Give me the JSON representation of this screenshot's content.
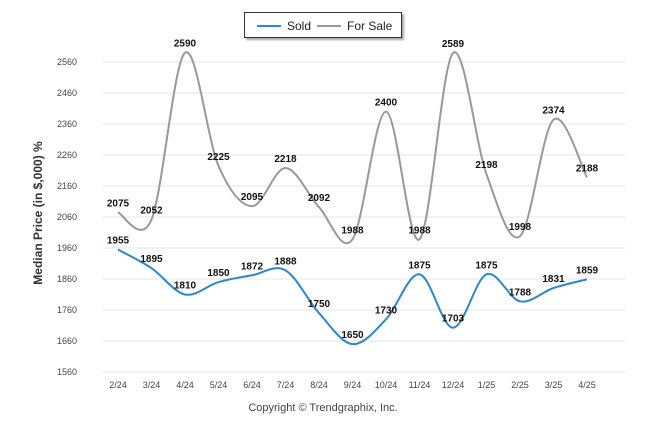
{
  "chart_data": {
    "type": "line",
    "categories": [
      "2/24",
      "3/24",
      "4/24",
      "5/24",
      "6/24",
      "7/24",
      "8/24",
      "9/24",
      "10/24",
      "11/24",
      "12/24",
      "1/25",
      "2/25",
      "3/25",
      "4/25"
    ],
    "series": [
      {
        "name": "Sold",
        "color": "#2b86d1",
        "values": [
          1955,
          1895,
          1810,
          1850,
          1872,
          1888,
          1750,
          1650,
          1730,
          1875,
          1703,
          1875,
          1788,
          1831,
          1859
        ]
      },
      {
        "name": "For Sale",
        "color": "#999999",
        "values": [
          2075,
          2052,
          2590,
          2225,
          2095,
          2218,
          2092,
          1988,
          2400,
          1988,
          2589,
          2198,
          1998,
          2374,
          2188
        ]
      }
    ],
    "ylabel": "Median Price (in $,000) %",
    "ylim": [
      1560,
      2620
    ],
    "yticks": [
      1560,
      1660,
      1760,
      1860,
      1960,
      2060,
      2160,
      2260,
      2360,
      2460,
      2560
    ],
    "grid": true,
    "legend": "top-center"
  },
  "footer": "Copyright © Trendgraphix, Inc."
}
